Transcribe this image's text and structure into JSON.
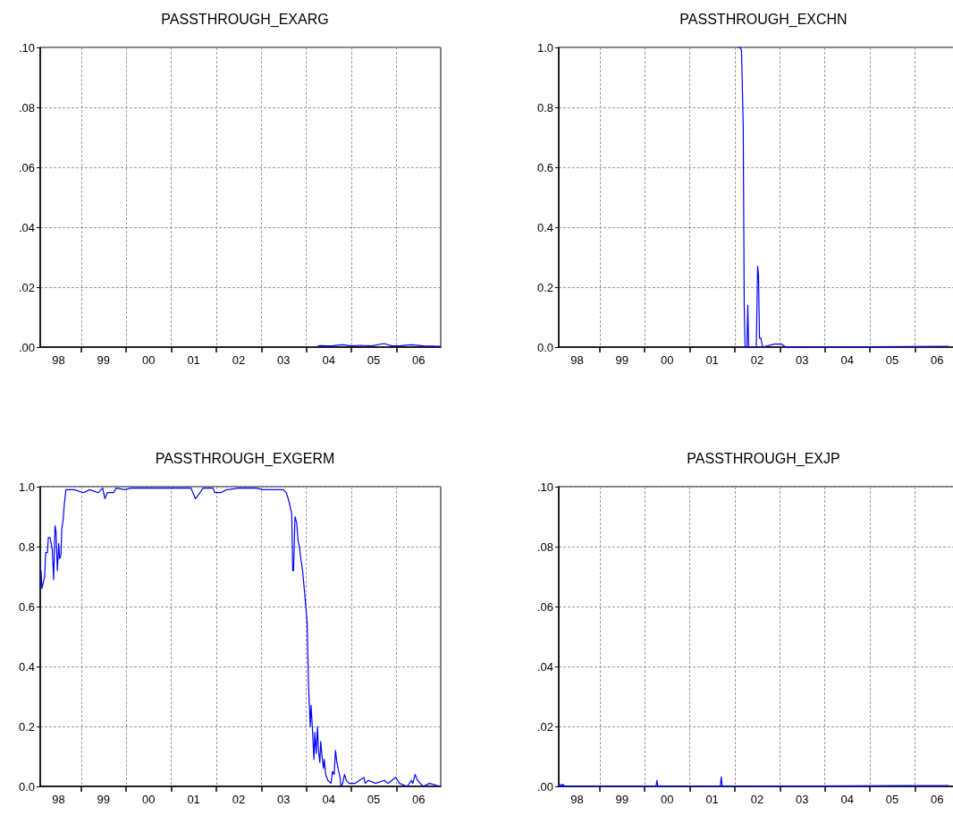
{
  "chart_data": [
    {
      "type": "line",
      "title": "PASSTHROUGH_EXARG",
      "color": "#0000ff",
      "grid": true,
      "xlim": [
        "1998-02-02",
        "2006-12-27"
      ],
      "ylim": [
        0,
        0.1
      ],
      "xticks": [
        {
          "value": "1998-07-01",
          "label": "98"
        },
        {
          "value": "1999-01-01",
          "label": null
        },
        {
          "value": "1999-07-01",
          "label": "99"
        },
        {
          "value": "2000-01-01",
          "label": null
        },
        {
          "value": "2000-07-01",
          "label": "00"
        },
        {
          "value": "2001-01-01",
          "label": null
        },
        {
          "value": "2001-07-01",
          "label": "01"
        },
        {
          "value": "2002-01-01",
          "label": null
        },
        {
          "value": "2002-07-01",
          "label": "02"
        },
        {
          "value": "2003-01-01",
          "label": null
        },
        {
          "value": "2003-07-01",
          "label": "03"
        },
        {
          "value": "2004-01-01",
          "label": null
        },
        {
          "value": "2004-07-01",
          "label": "04"
        },
        {
          "value": "2005-01-01",
          "label": null
        },
        {
          "value": "2005-07-01",
          "label": "05"
        },
        {
          "value": "2006-01-01",
          "label": null
        },
        {
          "value": "2006-07-01",
          "label": "06"
        }
      ],
      "yticks": [
        {
          "value": 0,
          "label": ".00"
        },
        {
          "value": 0.02,
          "label": ".02"
        },
        {
          "value": 0.04,
          "label": ".04"
        },
        {
          "value": 0.06,
          "label": ".06"
        },
        {
          "value": 0.08,
          "label": ".08"
        },
        {
          "value": 0.1,
          "label": ".10"
        }
      ],
      "x": [
        "2004-03-29",
        "2004-04-20",
        "2004-06-13",
        "2004-08-07",
        "2004-10-23",
        "2005-01-02",
        "2005-03-14",
        "2005-06-13",
        "2005-09-23",
        "2005-11-25",
        "2006-02-06",
        "2006-05-04",
        "2006-08-07",
        "2006-12-20"
      ],
      "values": [
        0.0002,
        0.0005,
        0.0004,
        0.0005,
        0.0008,
        0.0004,
        0.0006,
        0.0004,
        0.0012,
        0.0004,
        0.0005,
        0.0008,
        0.0004,
        0.0003
      ]
    },
    {
      "type": "line",
      "title": "PASSTHROUGH_EXCHN",
      "color": "#0000ff",
      "grid": true,
      "xlim": [
        "1998-02-02",
        "2006-12-27"
      ],
      "ylim": [
        0,
        1
      ],
      "xticks": [
        {
          "value": "1998-07-01",
          "label": "98"
        },
        {
          "value": "1999-01-01",
          "label": null
        },
        {
          "value": "1999-07-01",
          "label": "99"
        },
        {
          "value": "2000-01-01",
          "label": null
        },
        {
          "value": "2000-07-01",
          "label": "00"
        },
        {
          "value": "2001-01-01",
          "label": null
        },
        {
          "value": "2001-07-01",
          "label": "01"
        },
        {
          "value": "2002-01-01",
          "label": null
        },
        {
          "value": "2002-07-01",
          "label": "02"
        },
        {
          "value": "2003-01-01",
          "label": null
        },
        {
          "value": "2003-07-01",
          "label": "03"
        },
        {
          "value": "2004-01-01",
          "label": null
        },
        {
          "value": "2004-07-01",
          "label": "04"
        },
        {
          "value": "2005-01-01",
          "label": null
        },
        {
          "value": "2005-07-01",
          "label": "05"
        },
        {
          "value": "2006-01-01",
          "label": null
        },
        {
          "value": "2006-07-01",
          "label": "06"
        }
      ],
      "yticks": [
        {
          "value": 0,
          "label": "0.0"
        },
        0.2,
        0.4,
        0.6,
        0.8,
        {
          "value": 1,
          "label": "1.0"
        }
      ],
      "x": [
        "2002-01-30",
        "2002-02-13",
        "2002-02-24",
        "2002-03-10",
        "2002-03-18",
        "2002-03-25",
        "2002-04-09",
        "2002-04-16",
        "2002-04-23",
        "2002-06-24",
        "2002-07-05",
        "2002-07-12",
        "2002-07-20",
        "2002-07-31",
        "2002-08-14",
        "2002-11-17",
        "2003-01-15",
        "2003-02-20",
        "2006-10-01"
      ],
      "values": [
        1.0,
        1.0,
        0.99,
        0.74,
        0.14,
        0.0,
        0.0,
        0.14,
        0.0,
        0.0,
        0.27,
        0.24,
        0.03,
        0.03,
        0.0,
        0.01,
        0.01,
        0.0,
        0.003
      ]
    },
    {
      "type": "line",
      "title": "PASSTHROUGH_EXGERM",
      "color": "#0000ff",
      "grid": true,
      "xlim": [
        "1998-02-02",
        "2006-12-27"
      ],
      "ylim": [
        0,
        1
      ],
      "xticks": [
        {
          "value": "1998-07-01",
          "label": "98"
        },
        {
          "value": "1999-01-01",
          "label": null
        },
        {
          "value": "1999-07-01",
          "label": "99"
        },
        {
          "value": "2000-01-01",
          "label": null
        },
        {
          "value": "2000-07-01",
          "label": "00"
        },
        {
          "value": "2001-01-01",
          "label": null
        },
        {
          "value": "2001-07-01",
          "label": "01"
        },
        {
          "value": "2002-01-01",
          "label": null
        },
        {
          "value": "2002-07-01",
          "label": "02"
        },
        {
          "value": "2003-01-01",
          "label": null
        },
        {
          "value": "2003-07-01",
          "label": "03"
        },
        {
          "value": "2004-01-01",
          "label": null
        },
        {
          "value": "2004-07-01",
          "label": "04"
        },
        {
          "value": "2005-01-01",
          "label": null
        },
        {
          "value": "2005-07-01",
          "label": "05"
        },
        {
          "value": "2006-01-01",
          "label": null
        },
        {
          "value": "2006-07-01",
          "label": "06"
        }
      ],
      "yticks": [
        {
          "value": 0,
          "label": "0.0"
        },
        0.2,
        0.4,
        0.6,
        0.8,
        {
          "value": 1,
          "label": "1.0"
        }
      ],
      "x": [
        "1998-02-09",
        "1998-02-16",
        "1998-02-27",
        "1998-03-10",
        "1998-03-18",
        "1998-04-01",
        "1998-04-09",
        "1998-04-23",
        "1998-05-11",
        "1998-05-22",
        "1998-06-02",
        "1998-06-10",
        "1998-06-21",
        "1998-07-02",
        "1998-07-09",
        "1998-07-20",
        "1998-07-27",
        "1998-08-07",
        "1998-08-14",
        "1998-08-29",
        "1998-09-09",
        "1998-11-06",
        "1999-01-18",
        "1999-03-10",
        "1999-05-19",
        "1999-06-24",
        "1999-07-12",
        "1999-07-31",
        "1999-09-20",
        "1999-10-12",
        "1999-12-24",
        "2000-02-09",
        "2000-07-05",
        "2001-03-03",
        "2001-06-10",
        "2001-07-16",
        "2001-08-22",
        "2001-09-13",
        "2001-12-05",
        "2001-12-20",
        "2002-02-06",
        "2002-03-25",
        "2002-07-02",
        "2002-11-21",
        "2003-01-11",
        "2003-06-28",
        "2003-07-23",
        "2003-08-14",
        "2003-09-05",
        "2003-09-13",
        "2003-09-20",
        "2003-10-01",
        "2003-10-15",
        "2003-10-26",
        "2003-11-06",
        "2003-11-21",
        "2003-12-02",
        "2003-12-13",
        "2004-01-01",
        "2004-01-08",
        "2004-01-19",
        "2004-02-02",
        "2004-02-09",
        "2004-02-20",
        "2004-03-03",
        "2004-03-10",
        "2004-03-21",
        "2004-04-01",
        "2004-04-09",
        "2004-04-20",
        "2004-04-27",
        "2004-05-08",
        "2004-05-19",
        "2004-05-26",
        "2004-06-06",
        "2004-06-24",
        "2004-07-20",
        "2004-07-31",
        "2004-08-14",
        "2004-08-25",
        "2004-09-05",
        "2004-09-20",
        "2004-10-01",
        "2004-10-08",
        "2004-10-23",
        "2004-11-06",
        "2004-11-21",
        "2004-12-13",
        "2005-01-30",
        "2005-04-12",
        "2005-04-23",
        "2005-05-19",
        "2005-07-16",
        "2005-09-27",
        "2005-10-23",
        "2005-12-27",
        "2006-01-26",
        "2006-03-29",
        "2006-05-04",
        "2006-05-15",
        "2006-06-02",
        "2006-06-21",
        "2006-08-07",
        "2006-09-27",
        "2006-12-20"
      ],
      "values": [
        0.72,
        0.66,
        0.68,
        0.7,
        0.78,
        0.78,
        0.83,
        0.83,
        0.79,
        0.69,
        0.87,
        0.85,
        0.72,
        0.81,
        0.76,
        0.77,
        0.86,
        0.89,
        0.93,
        0.99,
        0.99,
        0.99,
        0.98,
        0.99,
        0.98,
        0.995,
        0.96,
        0.98,
        0.98,
        0.995,
        0.99,
        0.995,
        0.995,
        0.995,
        0.995,
        0.96,
        0.98,
        0.995,
        0.995,
        0.98,
        0.98,
        0.99,
        0.995,
        0.995,
        0.99,
        0.99,
        0.98,
        0.95,
        0.91,
        0.72,
        0.72,
        0.9,
        0.88,
        0.82,
        0.8,
        0.75,
        0.72,
        0.67,
        0.58,
        0.55,
        0.34,
        0.2,
        0.27,
        0.19,
        0.09,
        0.18,
        0.11,
        0.2,
        0.12,
        0.08,
        0.15,
        0.1,
        0.06,
        0.09,
        0.04,
        0.02,
        0.01,
        0.05,
        0.04,
        0.12,
        0.08,
        0.05,
        0.03,
        0.0,
        0.01,
        0.04,
        0.02,
        0.01,
        0.01,
        0.03,
        0.01,
        0.02,
        0.01,
        0.02,
        0.01,
        0.03,
        0.01,
        0.0,
        0.02,
        0.01,
        0.04,
        0.02,
        0.0,
        0.01,
        0.0
      ]
    },
    {
      "type": "line",
      "title": "PASSTHROUGH_EXJP",
      "color": "#0000ff",
      "grid": true,
      "xlim": [
        "1998-02-02",
        "2006-12-27"
      ],
      "ylim": [
        0,
        0.1
      ],
      "xticks": [
        {
          "value": "1998-07-01",
          "label": "98"
        },
        {
          "value": "1999-01-01",
          "label": null
        },
        {
          "value": "1999-07-01",
          "label": "99"
        },
        {
          "value": "2000-01-01",
          "label": null
        },
        {
          "value": "2000-07-01",
          "label": "00"
        },
        {
          "value": "2001-01-01",
          "label": null
        },
        {
          "value": "2001-07-01",
          "label": "01"
        },
        {
          "value": "2002-01-01",
          "label": null
        },
        {
          "value": "2002-07-01",
          "label": "02"
        },
        {
          "value": "2003-01-01",
          "label": null
        },
        {
          "value": "2003-07-01",
          "label": "03"
        },
        {
          "value": "2004-01-01",
          "label": null
        },
        {
          "value": "2004-07-01",
          "label": "04"
        },
        {
          "value": "2005-01-01",
          "label": null
        },
        {
          "value": "2005-07-01",
          "label": "05"
        },
        {
          "value": "2006-01-01",
          "label": null
        },
        {
          "value": "2006-07-01",
          "label": "06"
        }
      ],
      "yticks": [
        {
          "value": 0,
          "label": ".00"
        },
        {
          "value": 0.02,
          "label": ".02"
        },
        {
          "value": 0.04,
          "label": ".04"
        },
        {
          "value": 0.06,
          "label": ".06"
        },
        {
          "value": 0.08,
          "label": ".08"
        },
        {
          "value": 0.1,
          "label": ".10"
        }
      ],
      "x": [
        "1998-02-06",
        "1998-02-13",
        "1998-02-24",
        "1998-03-03",
        "1998-03-10",
        "1998-03-18",
        "2000-04-01",
        "2000-04-09",
        "2000-04-16",
        "2001-09-05",
        "2001-09-13",
        "2001-09-20",
        "2006-10-01"
      ],
      "values": [
        0.0008,
        0.0,
        0.0006,
        0.0,
        0.0007,
        0.0,
        0.0,
        0.002,
        0.0,
        0.0,
        0.0032,
        0.0,
        0.0003
      ]
    }
  ]
}
